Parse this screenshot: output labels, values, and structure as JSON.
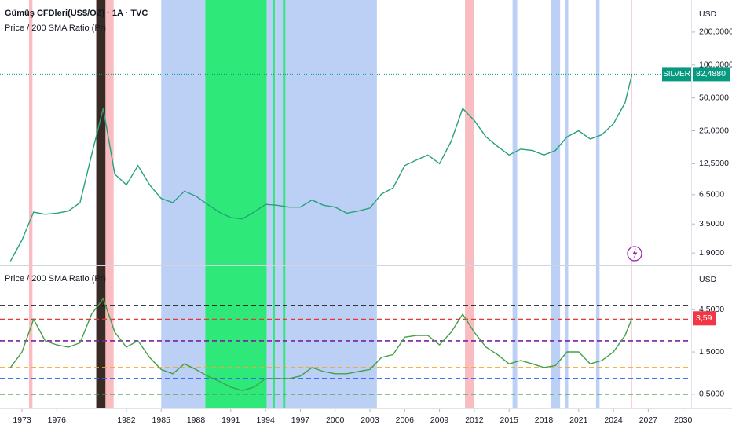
{
  "chart_data": [
    {
      "type": "line",
      "title": "Gümüş CFDleri(US$/OZ) · 1A · TVC",
      "subtitle": "Price / 200 SMA Ratio (Pr)",
      "currency": "USD",
      "log_scale": true,
      "xlim": [
        1971.1,
        2030.7
      ],
      "ylim": [
        1.46,
        394
      ],
      "yticks": [
        {
          "value": 200,
          "label": "200,0000"
        },
        {
          "value": 100,
          "label": "100,0000"
        },
        {
          "value": 50,
          "label": "50,0000"
        },
        {
          "value": 25,
          "label": "25,0000"
        },
        {
          "value": 12.5,
          "label": "12,5000"
        },
        {
          "value": 6.5,
          "label": "6,5000"
        },
        {
          "value": 3.5,
          "label": "3,5000"
        },
        {
          "value": 1.9,
          "label": "1,9000"
        }
      ],
      "series": [
        {
          "name": "SILVER",
          "color": "#26a17b",
          "x": [
            1972,
            1973,
            1974,
            1975,
            1976,
            1977,
            1978,
            1979,
            1980,
            1981,
            1982,
            1983,
            1984,
            1985,
            1986,
            1987,
            1988,
            1989,
            1990,
            1991,
            1992,
            1993,
            1994,
            1995,
            1996,
            1997,
            1998,
            1999,
            2000,
            2001,
            2002,
            2003,
            2004,
            2005,
            2006,
            2007,
            2008,
            2009,
            2010,
            2011,
            2012,
            2013,
            2014,
            2015,
            2016,
            2017,
            2018,
            2019,
            2020,
            2021,
            2022,
            2023,
            2024,
            2025,
            2025.6
          ],
          "values": [
            1.6,
            2.5,
            4.5,
            4.3,
            4.4,
            4.6,
            5.5,
            15,
            40,
            10,
            8,
            12,
            8,
            6,
            5.5,
            7,
            6.3,
            5.3,
            4.5,
            4,
            3.9,
            4.5,
            5.3,
            5.2,
            5,
            5,
            5.8,
            5.2,
            5,
            4.4,
            4.6,
            4.9,
            6.6,
            7.5,
            12,
            13.5,
            15,
            12.5,
            20,
            40,
            31,
            22,
            18,
            15,
            17,
            16.5,
            15,
            16.5,
            22,
            25,
            21,
            23,
            29,
            45,
            82.488
          ]
        }
      ],
      "last_price": {
        "value": 82.488,
        "label": "82,4880"
      },
      "bands": [
        {
          "start": 1973.6,
          "end": 1973.9,
          "color": "#f8bcc1"
        },
        {
          "start": 1979.4,
          "end": 1980.2,
          "color": "#3a2a26"
        },
        {
          "start": 1980.2,
          "end": 1980.9,
          "color": "#f8bcc1"
        },
        {
          "start": 1985.0,
          "end": 1988.8,
          "color": "#bcd0f5"
        },
        {
          "start": 1988.8,
          "end": 1994.1,
          "color": "#2ee87a"
        },
        {
          "start": 1994.1,
          "end": 2003.6,
          "color": "#bcd0f5"
        },
        {
          "start": 1994.6,
          "end": 1994.8,
          "color": "#2ee87a"
        },
        {
          "start": 1995.5,
          "end": 1995.7,
          "color": "#2ee87a"
        },
        {
          "start": 2011.2,
          "end": 2012.0,
          "color": "#f8bcc1"
        },
        {
          "start": 2015.3,
          "end": 2015.7,
          "color": "#bcd0f5"
        },
        {
          "start": 2018.6,
          "end": 2019.4,
          "color": "#bcd0f5"
        },
        {
          "start": 2019.8,
          "end": 2020.1,
          "color": "#bcd0f5"
        },
        {
          "start": 2022.5,
          "end": 2022.8,
          "color": "#bcd0f5"
        },
        {
          "start": 2025.5,
          "end": 2025.6,
          "color": "#f8bcc1"
        }
      ]
    },
    {
      "type": "line",
      "title": "Price / 200 SMA Ratio (Pr)",
      "currency": "USD",
      "log_scale": true,
      "xlim": [
        1971.1,
        2030.7
      ],
      "ylim": [
        0.345,
        13.9
      ],
      "xticks": [
        1973,
        1976,
        1982,
        1985,
        1988,
        1991,
        1994,
        1997,
        2000,
        2003,
        2006,
        2009,
        2012,
        2015,
        2018,
        2021,
        2024,
        2027,
        2030
      ],
      "yticks": [
        {
          "value": 4.5,
          "label": "4,5000"
        },
        {
          "value": 1.5,
          "label": "1,5000"
        },
        {
          "value": 0.5,
          "label": "0,5000"
        }
      ],
      "levels": [
        {
          "value": 5,
          "color": "#000000"
        },
        {
          "value": 3.5,
          "color": "#e53935"
        },
        {
          "value": 2,
          "color": "#7b1fa2"
        },
        {
          "value": 1,
          "color": "#f5a623"
        },
        {
          "value": 0.75,
          "color": "#2962ff"
        },
        {
          "value": 0.5,
          "color": "#43a047"
        }
      ],
      "series": [
        {
          "color": "#43a047",
          "x": [
            1972,
            1973,
            1974,
            1975,
            1976,
            1977,
            1978,
            1979,
            1980,
            1981,
            1982,
            1983,
            1984,
            1985,
            1986,
            1987,
            1988,
            1989,
            1990,
            1991,
            1992,
            1993,
            1994,
            1995,
            1996,
            1997,
            1998,
            1999,
            2000,
            2001,
            2002,
            2003,
            2004,
            2005,
            2006,
            2007,
            2008,
            2009,
            2010,
            2011,
            2012,
            2013,
            2014,
            2015,
            2016,
            2017,
            2018,
            2019,
            2020,
            2021,
            2022,
            2023,
            2024,
            2025,
            2025.6
          ],
          "values": [
            1.0,
            1.5,
            3.5,
            2.0,
            1.8,
            1.7,
            1.9,
            4,
            6,
            2.5,
            1.7,
            2.0,
            1.3,
            0.95,
            0.85,
            1.1,
            0.95,
            0.8,
            0.7,
            0.6,
            0.55,
            0.6,
            0.75,
            0.75,
            0.75,
            0.8,
            1.0,
            0.9,
            0.85,
            0.85,
            0.9,
            0.95,
            1.3,
            1.4,
            2.2,
            2.3,
            2.3,
            1.8,
            2.5,
            4,
            2.5,
            1.7,
            1.4,
            1.1,
            1.2,
            1.1,
            1.0,
            1.05,
            1.5,
            1.5,
            1.1,
            1.2,
            1.5,
            2.3,
            3.59
          ]
        }
      ],
      "last_ratio": {
        "value": 3.59,
        "label": "3,59"
      }
    }
  ]
}
